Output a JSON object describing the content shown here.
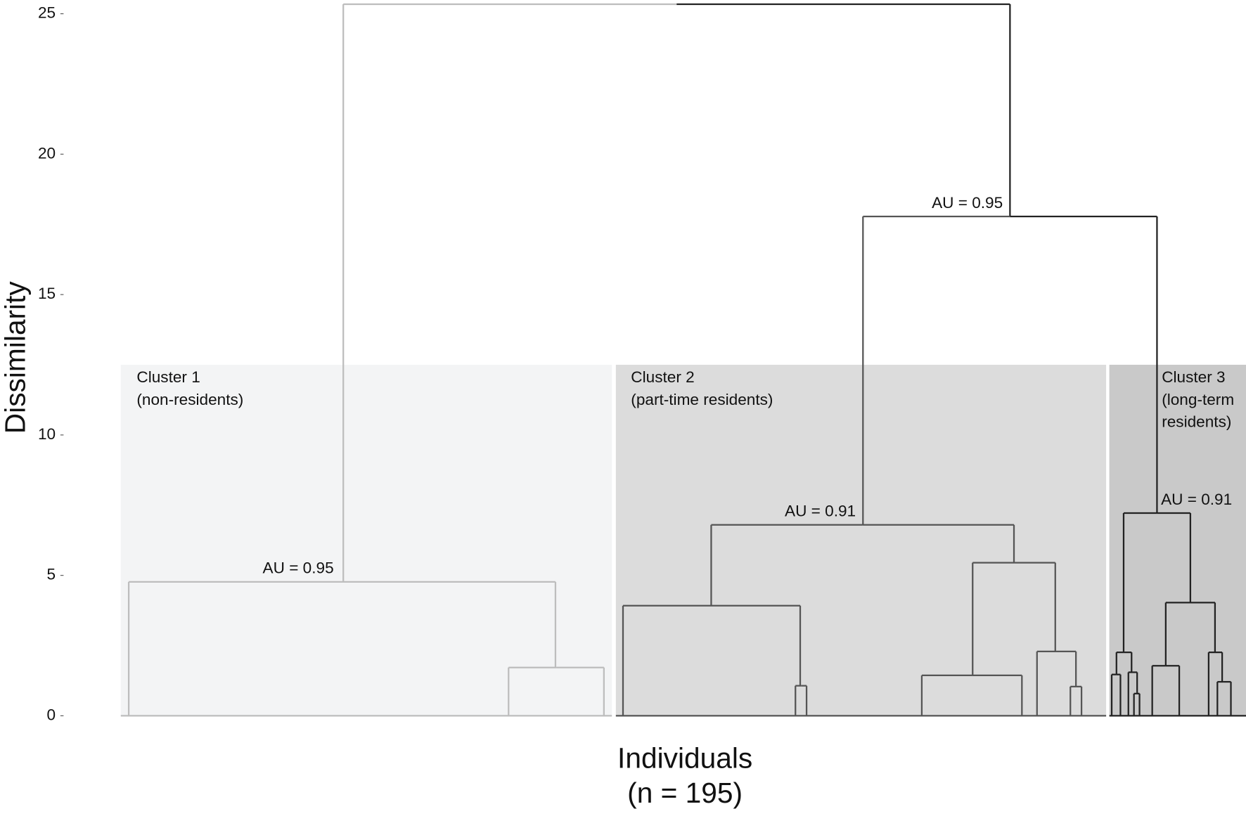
{
  "chart_data": {
    "type": "dendrogram",
    "y_label": "Dissimilarity",
    "x_label": [
      "Individuals",
      "(n = 195)"
    ],
    "ylim": [
      0,
      25.4
    ],
    "yticks": [
      0,
      5,
      10,
      15,
      20,
      25
    ],
    "cluster_height": 12.5,
    "clusters": [
      {
        "lines": [
          "Cluster 1",
          "(non-residents)"
        ],
        "fill": "#f3f4f5",
        "line": "#bdbdbd"
      },
      {
        "lines": [
          "Cluster 2",
          "(part-time residents)"
        ],
        "fill": "#dcdcdc",
        "line": "#555555"
      },
      {
        "lines": [
          "Cluster 3",
          "(long-term",
          "residents)"
        ],
        "fill": "#c9c9c9",
        "line": "#222222"
      }
    ],
    "tree": {
      "height": 25.34,
      "children": [
        {
          "height": 4.77,
          "color": "#bdbdbd",
          "label": "AU = 0.95",
          "children": [
            null,
            {
              "height": 1.72,
              "children": [
                null,
                null
              ]
            }
          ]
        },
        {
          "height": 17.78,
          "color": "#222222",
          "label": "AU = 0.95",
          "children": [
            {
              "height": 6.8,
              "color": "#555555",
              "label": "AU = 0.91",
              "children": [
                {
                  "height": 3.92,
                  "children": [
                    null,
                    {
                      "height": 1.07,
                      "children": [
                        null,
                        null
                      ]
                    }
                  ]
                },
                {
                  "height": 5.45,
                  "children": [
                    {
                      "height": 1.44,
                      "children": [
                        null,
                        null
                      ]
                    },
                    {
                      "height": 2.29,
                      "children": [
                        null,
                        {
                          "height": 1.04,
                          "children": [
                            null,
                            null
                          ]
                        }
                      ]
                    }
                  ]
                }
              ]
            },
            {
              "height": 7.22,
              "color": "#222222",
              "label": "AU = 0.91",
              "children": [
                {
                  "height": 2.26,
                  "children": [
                    {
                      "height": 1.47,
                      "children": [
                        null,
                        null
                      ]
                    },
                    {
                      "height": 1.55,
                      "children": [
                        null,
                        {
                          "height": 0.79,
                          "children": [
                            null,
                            null
                          ]
                        }
                      ]
                    }
                  ]
                },
                {
                  "height": 4.03,
                  "children": [
                    {
                      "height": 1.78,
                      "children": [
                        null,
                        null
                      ]
                    },
                    {
                      "height": 2.26,
                      "children": [
                        null,
                        {
                          "height": 1.21,
                          "children": [
                            null,
                            null
                          ]
                        }
                      ]
                    }
                  ]
                }
              ]
            }
          ]
        }
      ]
    }
  }
}
